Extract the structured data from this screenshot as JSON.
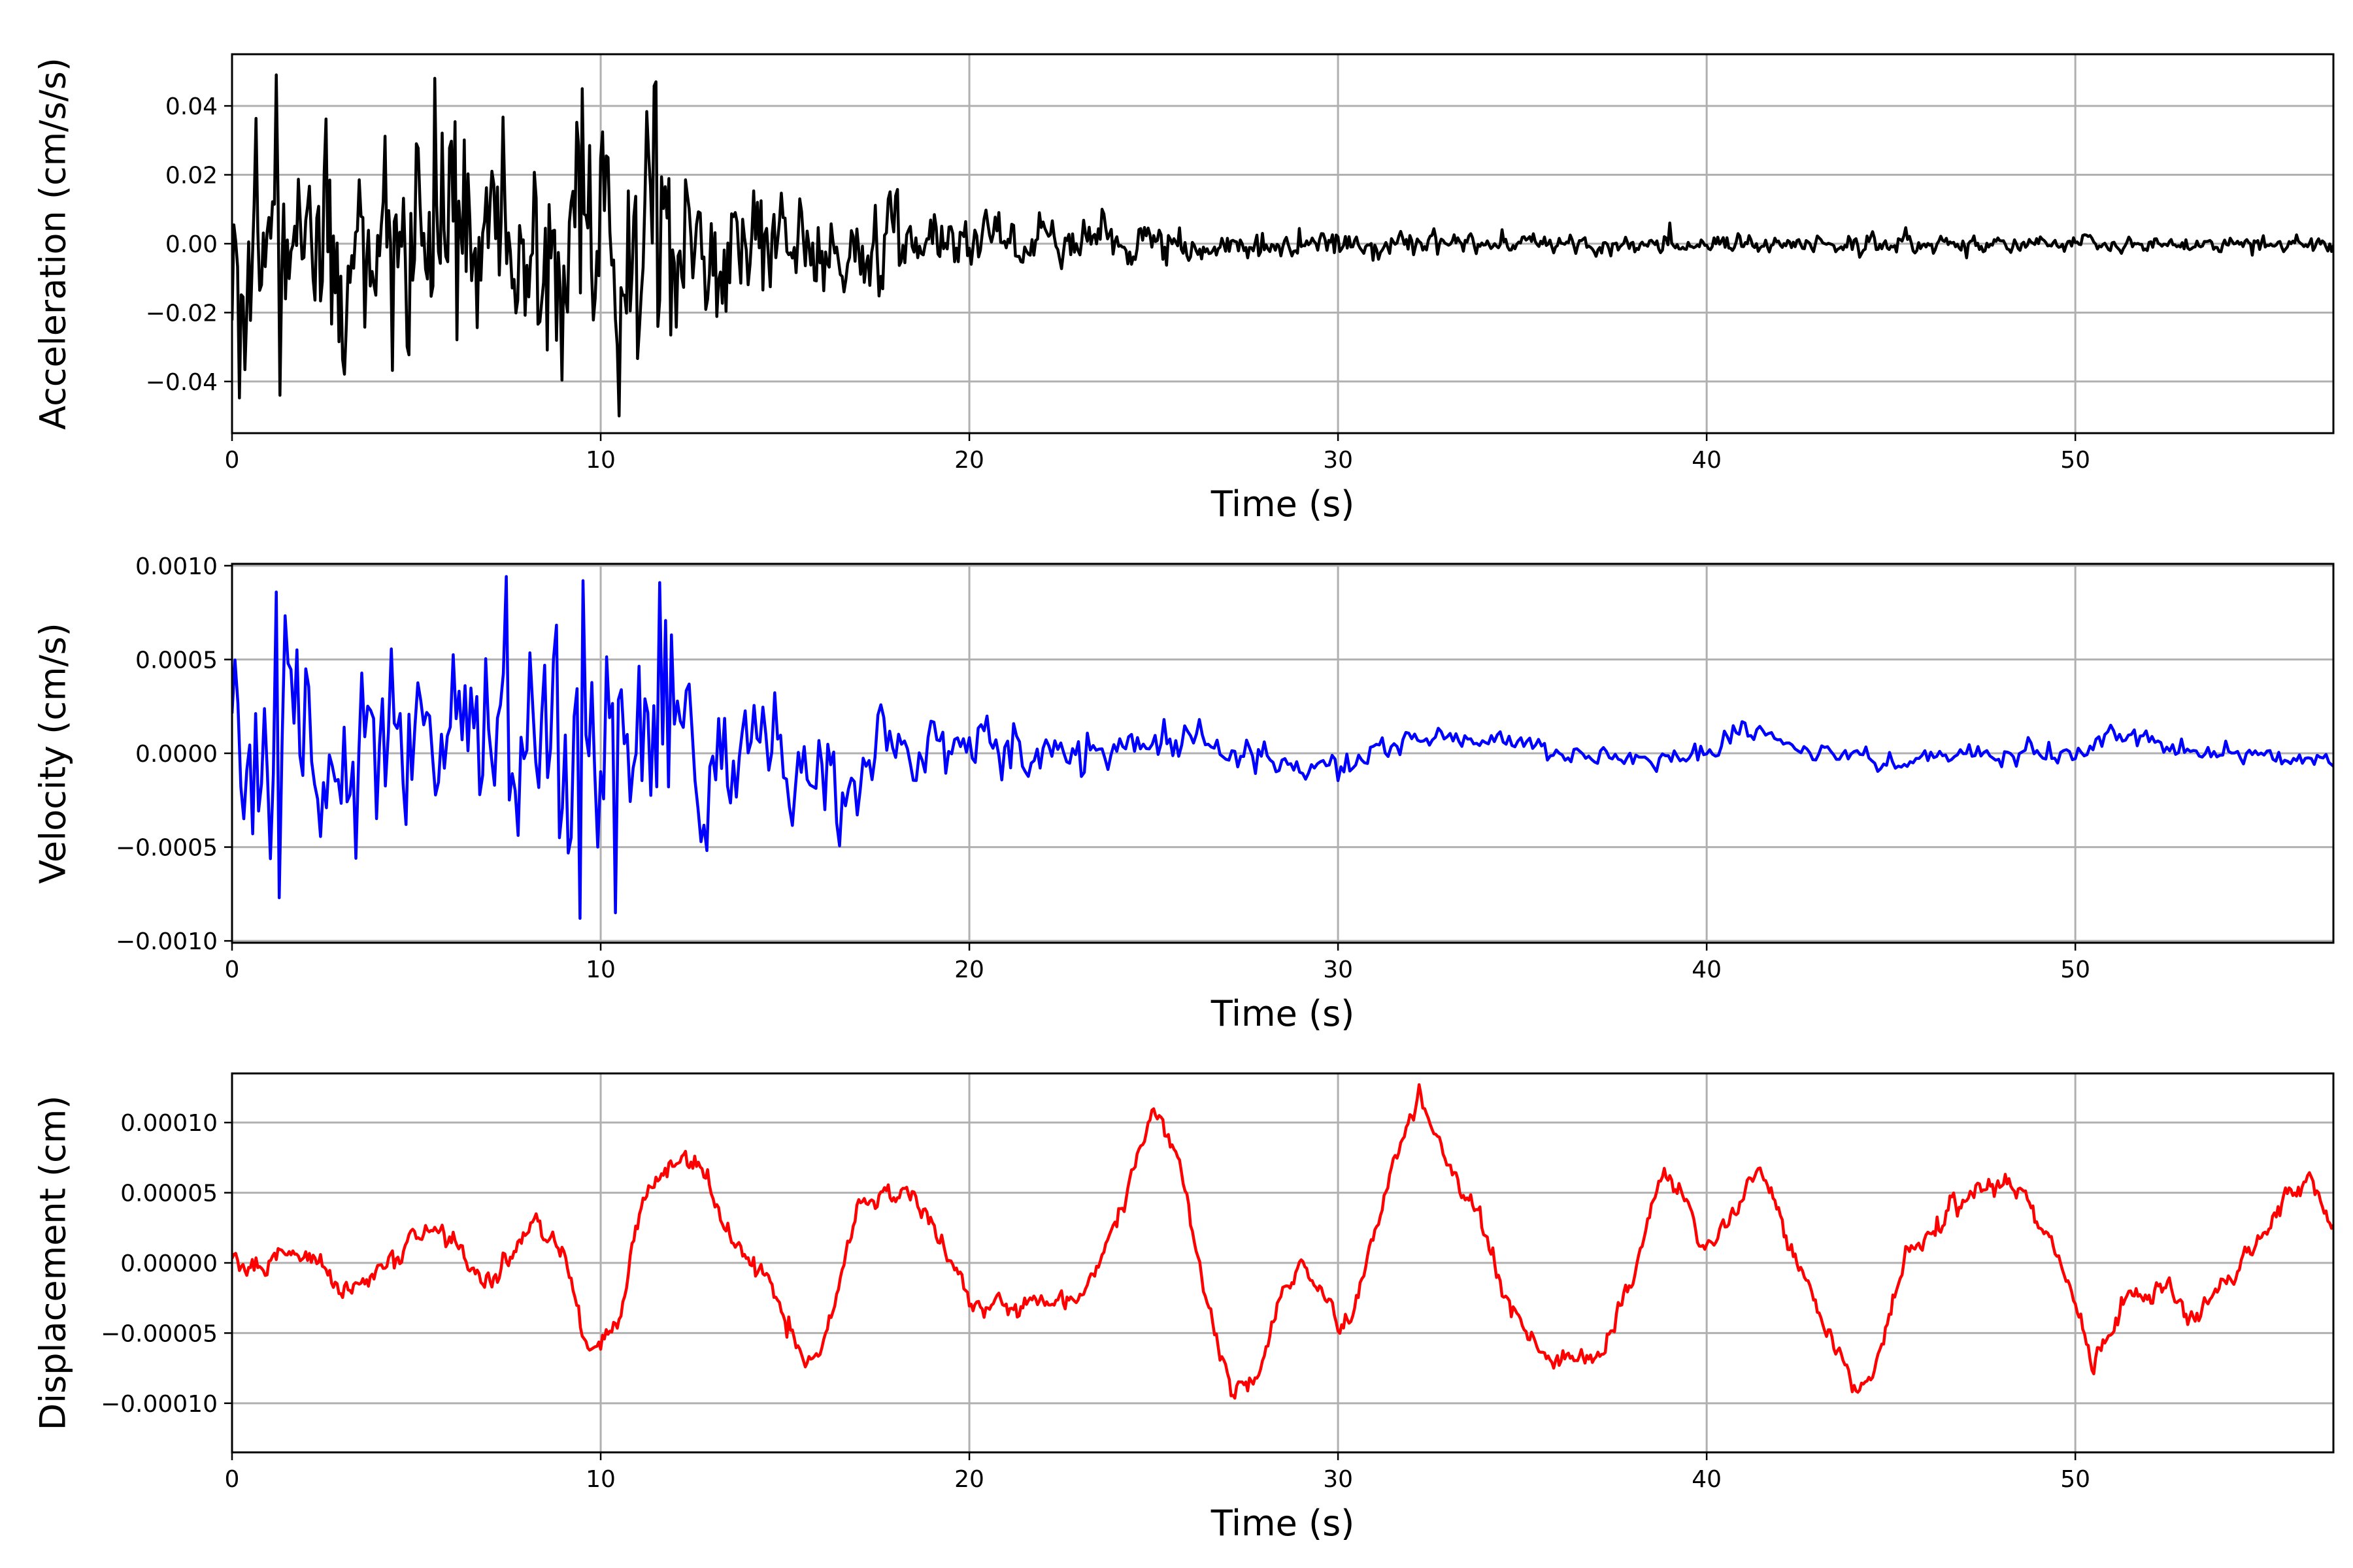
{
  "chart_data": [
    {
      "type": "line",
      "xlabel": "Time (s)",
      "ylabel": "Acceleration (cm/s/s)",
      "xlim": [
        0,
        57
      ],
      "ylim": [
        -0.055,
        0.055
      ],
      "xticks": [
        0,
        10,
        20,
        30,
        40,
        50
      ],
      "xtick_labels": [
        "0",
        "10",
        "20",
        "30",
        "40",
        "50"
      ],
      "yticks": [
        -0.04,
        -0.02,
        0.0,
        0.02,
        0.04
      ],
      "ytick_labels": [
        "−0.04",
        "−0.02",
        "0.00",
        "0.02",
        "0.04"
      ],
      "grid": true,
      "color": "#000000",
      "series": [
        {
          "signal": "noise-envelope",
          "x_step": 0.05,
          "envelope": [
            [
              0,
              0.026
            ],
            [
              3,
              0.024
            ],
            [
              6,
              0.027
            ],
            [
              10,
              0.027
            ],
            [
              12,
              0.022
            ],
            [
              14,
              0.015
            ],
            [
              17,
              0.011
            ],
            [
              20,
              0.007
            ],
            [
              25,
              0.0045
            ],
            [
              30,
              0.003
            ],
            [
              40,
              0.0022
            ],
            [
              57,
              0.0018
            ]
          ],
          "peaks": [
            [
              1.2,
              0.049
            ],
            [
              5.5,
              0.048
            ],
            [
              10.5,
              -0.05
            ],
            [
              11.5,
              0.047
            ],
            [
              9.5,
              0.045
            ],
            [
              1.3,
              -0.044
            ],
            [
              39,
              0.006
            ]
          ]
        }
      ]
    },
    {
      "type": "line",
      "xlabel": "Time (s)",
      "ylabel": "Velocity (cm/s)",
      "xlim": [
        0,
        57
      ],
      "ylim": [
        -0.00101,
        0.00101
      ],
      "xticks": [
        0,
        10,
        20,
        30,
        40,
        50
      ],
      "xtick_labels": [
        "0",
        "10",
        "20",
        "30",
        "40",
        "50"
      ],
      "yticks": [
        -0.001,
        -0.0005,
        0.0,
        0.0005,
        0.001
      ],
      "ytick_labels": [
        "−0.0010",
        "−0.0005",
        "0.0000",
        "0.0005",
        "0.0010"
      ],
      "grid": true,
      "color": "#0000ff",
      "series": [
        {
          "signal": "noise-envelope",
          "x_step": 0.08,
          "envelope": [
            [
              0,
              0.00045
            ],
            [
              4,
              0.00045
            ],
            [
              8,
              0.0005
            ],
            [
              12,
              0.00048
            ],
            [
              14,
              0.00028
            ],
            [
              17,
              0.0002
            ],
            [
              20,
              0.00013
            ],
            [
              25,
              8e-05
            ],
            [
              30,
              6e-05
            ],
            [
              57,
              4e-05
            ]
          ],
          "trend": [
            [
              0,
              0
            ],
            [
              22,
              0
            ],
            [
              24,
              5e-05
            ],
            [
              26,
              0.0001
            ],
            [
              28,
              -5e-05
            ],
            [
              30,
              -0.0001
            ],
            [
              32,
              0.0001
            ],
            [
              34,
              8e-05
            ],
            [
              36,
              0.0
            ],
            [
              38,
              -5e-05
            ],
            [
              40,
              0.0
            ],
            [
              41,
              0.00015
            ],
            [
              43,
              0.0
            ],
            [
              45,
              -5e-05
            ],
            [
              47,
              0.0
            ],
            [
              50,
              0.0
            ],
            [
              51,
              0.0001
            ],
            [
              53,
              0.0
            ],
            [
              57,
              -3e-05
            ]
          ],
          "peaks": [
            [
              9.5,
              0.00092
            ],
            [
              11.6,
              0.00091
            ],
            [
              1.2,
              0.00086
            ],
            [
              9.4,
              -0.00088
            ],
            [
              10.4,
              -0.00085
            ],
            [
              1.3,
              -0.00077
            ]
          ]
        }
      ]
    },
    {
      "type": "line",
      "xlabel": "Time (s)",
      "ylabel": "Displacement (cm)",
      "xlim": [
        0,
        57
      ],
      "ylim": [
        -0.000135,
        0.000135
      ],
      "xticks": [
        0,
        10,
        20,
        30,
        40,
        50
      ],
      "xtick_labels": [
        "0",
        "10",
        "20",
        "30",
        "40",
        "50"
      ],
      "yticks": [
        -0.0001,
        -5e-05,
        0.0,
        5e-05,
        0.0001
      ],
      "ytick_labels": [
        "−0.00010",
        "−0.00005",
        "0.00000",
        "0.00005",
        "0.00010"
      ],
      "grid": true,
      "color": "#ff0000",
      "series": [
        {
          "signal": "smooth-with-jitter",
          "x_step": 0.05,
          "keypoints": [
            [
              0,
              0.0
            ],
            [
              1,
              0.0
            ],
            [
              2,
              1e-05
            ],
            [
              3,
              -2e-05
            ],
            [
              4,
              -1e-05
            ],
            [
              5,
              2e-05
            ],
            [
              6,
              2e-05
            ],
            [
              7,
              -2e-05
            ],
            [
              8,
              3e-05
            ],
            [
              9,
              1e-05
            ],
            [
              9.5,
              -5e-05
            ],
            [
              10,
              -6e-05
            ],
            [
              10.5,
              -4e-05
            ],
            [
              11.2,
              5e-05
            ],
            [
              12.3,
              8e-05
            ],
            [
              13,
              5e-05
            ],
            [
              14,
              0.0
            ],
            [
              14.6,
              -2e-05
            ],
            [
              15.5,
              -7e-05
            ],
            [
              16,
              -6e-05
            ],
            [
              17,
              4e-05
            ],
            [
              18.5,
              5e-05
            ],
            [
              19.5,
              0.0
            ],
            [
              20,
              -3e-05
            ],
            [
              21,
              -3e-05
            ],
            [
              22,
              -3e-05
            ],
            [
              23,
              -3e-05
            ],
            [
              24,
              3e-05
            ],
            [
              25,
              0.00011
            ],
            [
              25.7,
              7e-05
            ],
            [
              26.5,
              -4e-05
            ],
            [
              27.2,
              -9e-05
            ],
            [
              27.8,
              -8e-05
            ],
            [
              28.5,
              -2e-05
            ],
            [
              29,
              0.0
            ],
            [
              29.5,
              -2e-05
            ],
            [
              30,
              -5e-05
            ],
            [
              30.5,
              -3e-05
            ],
            [
              31.5,
              7e-05
            ],
            [
              32.2,
              0.00012
            ],
            [
              32.8,
              8e-05
            ],
            [
              33.5,
              5e-05
            ],
            [
              34.5,
              -2e-05
            ],
            [
              35.5,
              -7e-05
            ],
            [
              36.5,
              -7e-05
            ],
            [
              37.2,
              -6e-05
            ],
            [
              38,
              -1e-05
            ],
            [
              38.7,
              6e-05
            ],
            [
              39.3,
              5e-05
            ],
            [
              40,
              1e-05
            ],
            [
              40.5,
              2e-05
            ],
            [
              41.4,
              7e-05
            ],
            [
              42.5,
              0.0
            ],
            [
              43.3,
              -5e-05
            ],
            [
              44,
              -9e-05
            ],
            [
              44.5,
              -8e-05
            ],
            [
              45.5,
              1e-05
            ],
            [
              46.5,
              3e-05
            ],
            [
              47.5,
              6e-05
            ],
            [
              48.5,
              5e-05
            ],
            [
              49.5,
              1e-05
            ],
            [
              50.5,
              -7e-05
            ],
            [
              51,
              -5e-05
            ],
            [
              51.5,
              -2e-05
            ],
            [
              52.5,
              -2e-05
            ],
            [
              53.2,
              -4e-05
            ],
            [
              54,
              -2e-05
            ],
            [
              55,
              2e-05
            ],
            [
              56.3,
              6e-05
            ],
            [
              57,
              3e-05
            ]
          ],
          "jitter": 8e-06
        }
      ]
    }
  ]
}
